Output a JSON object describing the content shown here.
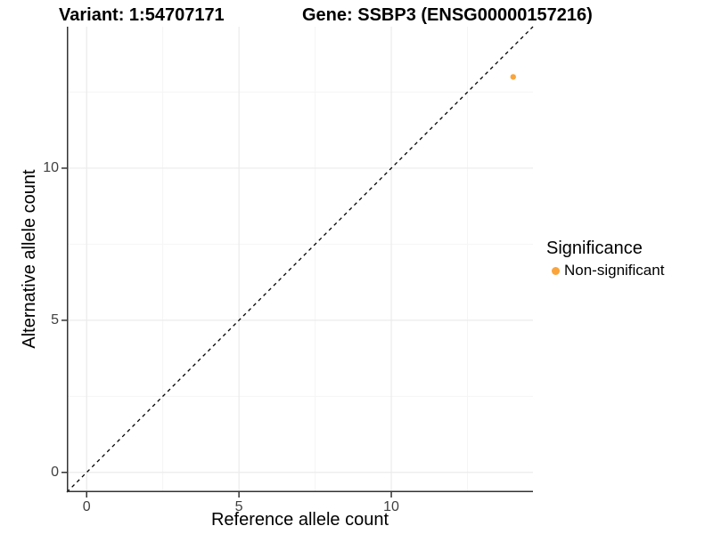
{
  "chart_data": {
    "type": "scatter",
    "titles": {
      "variant": "Variant: 1:54707171",
      "gene": "Gene: SSBP3 (ENSG00000157216)"
    },
    "xlabel": "Reference allele count",
    "ylabel": "Alternative allele count",
    "xlim": [
      -0.65,
      14.65
    ],
    "ylim": [
      -0.65,
      14.65
    ],
    "x_ticks": [
      0,
      5,
      10
    ],
    "y_ticks": [
      0,
      5,
      10
    ],
    "x_minor_ticks": [
      2.5,
      7.5,
      12.5
    ],
    "y_minor_ticks": [
      2.5,
      7.5,
      12.5
    ],
    "grid": true,
    "points": [
      {
        "x": 14,
        "y": 13,
        "series": "Non-significant"
      }
    ],
    "identity_line": {
      "slope": 1,
      "intercept": 0,
      "style": "dashed"
    },
    "legend": {
      "title": "Significance",
      "position": "right",
      "entries": [
        {
          "label": "Non-significant",
          "color": "#FAA43A"
        }
      ]
    },
    "colors": {
      "point": "#FAA43A",
      "grid_major": "#EBEBEB",
      "grid_minor": "#F5F5F5",
      "axis": "#333333",
      "abline": "#000000",
      "tick_text": "#404040",
      "title_text": "#000000",
      "background": "#FFFFFF"
    }
  }
}
